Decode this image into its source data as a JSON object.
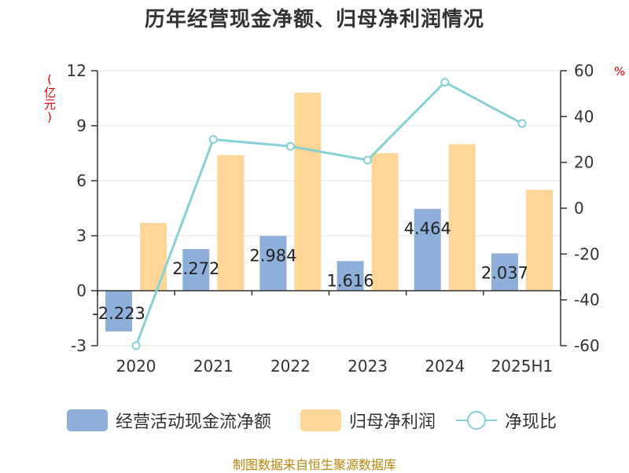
{
  "title": "历年经营现金净额、归母净利润情况",
  "y_left_unit": "(亿元)",
  "y_right_unit": "%",
  "legend": {
    "cash_flow": "经营活动现金流净额",
    "net_profit": "归母净利润",
    "ratio": "净现比"
  },
  "source": "制图数据来自恒生聚源数据库",
  "colors": {
    "cash_flow": "#8fafdb",
    "net_profit": "#fdd698",
    "ratio": "#87d0d6"
  },
  "chart_data": {
    "type": "bar",
    "categories": [
      "2020",
      "2021",
      "2022",
      "2023",
      "2024",
      "2025H1"
    ],
    "series": [
      {
        "name": "经营活动现金流净额",
        "type": "bar",
        "axis": "left",
        "values": [
          -2.223,
          2.272,
          2.984,
          1.616,
          4.464,
          2.037
        ],
        "labels": [
          "-2.223",
          "2.272",
          "2.984",
          "1.616",
          "4.464",
          "2.037"
        ]
      },
      {
        "name": "归母净利润",
        "type": "bar",
        "axis": "left",
        "values": [
          3.7,
          7.4,
          10.8,
          7.5,
          8.0,
          5.5
        ]
      },
      {
        "name": "净现比",
        "type": "line",
        "axis": "right",
        "values": [
          -60,
          30,
          27,
          21,
          55,
          37
        ]
      }
    ],
    "y_left": {
      "ylim": [
        -3,
        12
      ],
      "ticks": [
        "-3",
        "0",
        "3",
        "6",
        "9",
        "12"
      ]
    },
    "y_right": {
      "ylim": [
        -60,
        60
      ],
      "ticks": [
        "-60",
        "-40",
        "-20",
        "0",
        "20",
        "40",
        "60"
      ]
    },
    "grid": true,
    "legend_position": "bottom"
  }
}
